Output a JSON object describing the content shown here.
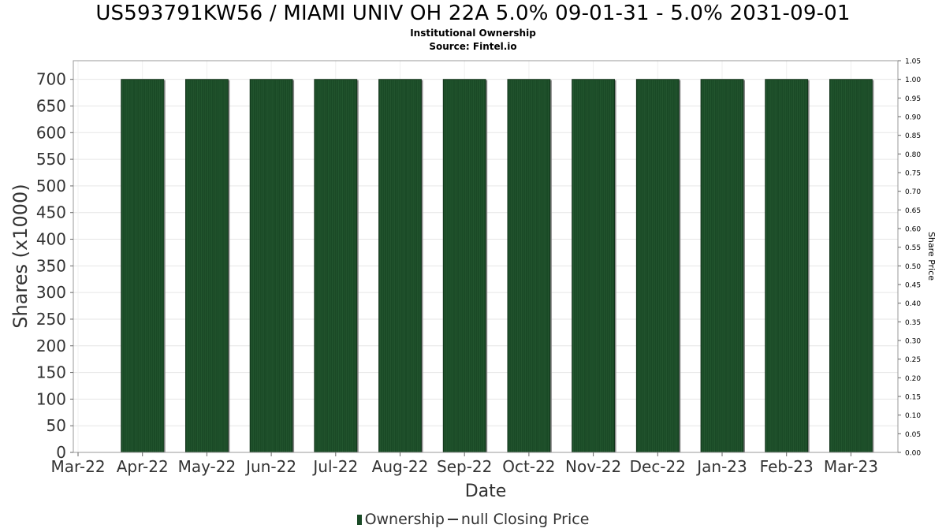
{
  "chart_data": {
    "type": "bar",
    "title": "US593791KW56 / MIAMI UNIV OH 22A 5.0% 09-01-31 - 5.0% 2031-09-01",
    "subtitle": "Institutional Ownership",
    "source": "Source: Fintel.io",
    "xlabel": "Date",
    "ylabel": "Shares (x1000)",
    "y2label": "Share Price",
    "x_ticks": [
      "Mar-22",
      "Apr-22",
      "May-22",
      "Jun-22",
      "Jul-22",
      "Aug-22",
      "Sep-22",
      "Oct-22",
      "Nov-22",
      "Dec-22",
      "Jan-23",
      "Feb-23",
      "Mar-23"
    ],
    "y_ticks": [
      "0",
      "50",
      "100",
      "150",
      "200",
      "250",
      "300",
      "350",
      "400",
      "450",
      "500",
      "550",
      "600",
      "650",
      "700"
    ],
    "y2_ticks": [
      "0.00",
      "0.05",
      "0.10",
      "0.15",
      "0.20",
      "0.25",
      "0.30",
      "0.35",
      "0.40",
      "0.45",
      "0.50",
      "0.55",
      "0.60",
      "0.65",
      "0.70",
      "0.75",
      "0.80",
      "0.85",
      "0.90",
      "0.95",
      "1.00",
      "1.05"
    ],
    "ylim": [
      0,
      735
    ],
    "y2lim": [
      0,
      1.05
    ],
    "categories": [
      "Apr-22",
      "May-22",
      "Jun-22",
      "Jul-22",
      "Aug-22",
      "Sep-22",
      "Oct-22",
      "Nov-22",
      "Dec-22",
      "Jan-23",
      "Feb-23",
      "Mar-23"
    ],
    "series": [
      {
        "name": "Ownership",
        "values": [
          700,
          700,
          700,
          700,
          700,
          700,
          700,
          700,
          700,
          700,
          700,
          700
        ]
      }
    ],
    "bar_color": "#1a4a26",
    "grid": true,
    "legend_position": "bottom"
  },
  "legend": {
    "ownership_label": "Ownership",
    "price_label": "null Closing Price"
  }
}
